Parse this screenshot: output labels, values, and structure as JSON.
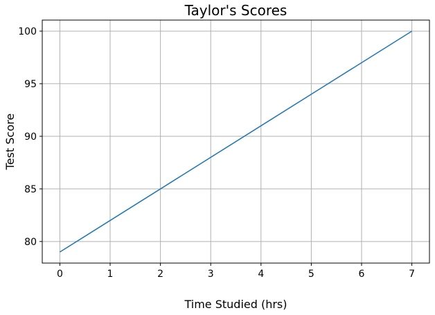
{
  "chart_data": {
    "type": "line",
    "title": "Taylor's Scores",
    "xlabel": "Time Studied (hrs)",
    "ylabel": "Test Score",
    "xlim": [
      -0.35,
      7.35
    ],
    "ylim": [
      77.95,
      101.05
    ],
    "xticks": [
      0,
      1,
      2,
      3,
      4,
      5,
      6,
      7
    ],
    "yticks": [
      80,
      85,
      90,
      95,
      100
    ],
    "grid": true,
    "series": [
      {
        "color": "#1f77b4",
        "x": [
          0,
          7
        ],
        "y": [
          79,
          100
        ]
      }
    ]
  }
}
